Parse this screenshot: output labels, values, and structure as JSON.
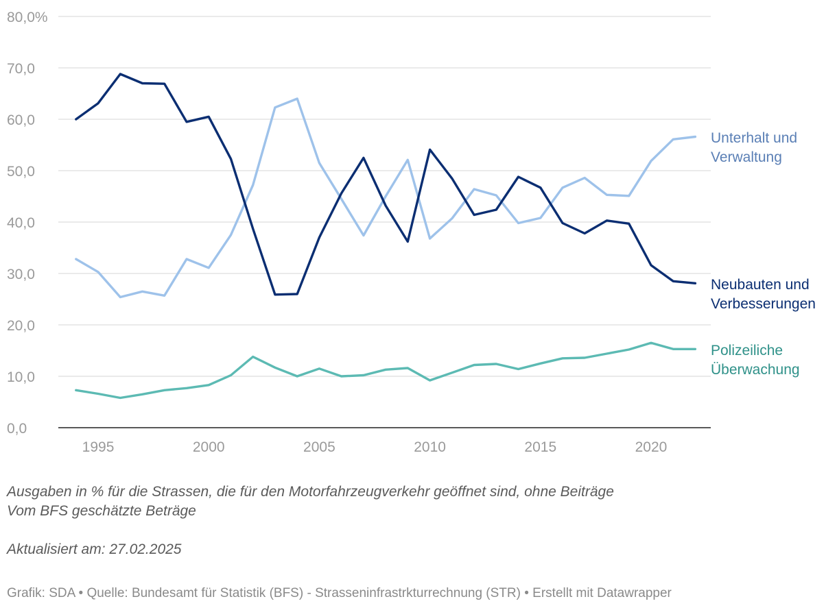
{
  "chart_data": {
    "type": "line",
    "title": "",
    "xlabel": "",
    "ylabel": "",
    "x": [
      1994,
      1995,
      1996,
      1997,
      1998,
      1999,
      2000,
      2001,
      2002,
      2003,
      2004,
      2005,
      2006,
      2007,
      2008,
      2009,
      2010,
      2011,
      2012,
      2013,
      2014,
      2015,
      2016,
      2017,
      2018,
      2019,
      2020,
      2021,
      2022
    ],
    "xlim": [
      1993.2,
      2022.7
    ],
    "ylim": [
      0,
      80
    ],
    "yticks": [
      "0,0",
      "10,0",
      "20,0",
      "30,0",
      "40,0",
      "50,0",
      "60,0",
      "70,0",
      "80,0%"
    ],
    "xticks": [
      "1995",
      "2000",
      "2005",
      "2010",
      "2015",
      "2020"
    ],
    "grid": true,
    "series": [
      {
        "name": "Unterhalt und Verwaltung",
        "label_lines": [
          "Unterhalt und",
          "Verwaltung"
        ],
        "color": "#9ec2ea",
        "label_color": "#5a7fb5",
        "values": [
          32.8,
          30.3,
          25.4,
          26.5,
          25.7,
          32.8,
          31.1,
          37.5,
          47.2,
          62.3,
          64.0,
          51.5,
          44.5,
          37.4,
          45.0,
          52.1,
          36.8,
          40.7,
          46.4,
          45.2,
          39.8,
          40.8,
          46.7,
          48.6,
          45.3,
          45.1,
          51.9,
          56.1,
          56.6
        ]
      },
      {
        "name": "Neubauten und Verbesserungen",
        "label_lines": [
          "Neubauten und",
          "Verbesserungen"
        ],
        "color": "#0b2e72",
        "label_color": "#0b2e72",
        "values": [
          60.0,
          63.1,
          68.8,
          67.0,
          66.9,
          59.5,
          60.5,
          52.3,
          38.7,
          25.9,
          26.0,
          37.0,
          45.6,
          52.5,
          43.2,
          36.2,
          54.1,
          48.5,
          41.4,
          42.4,
          48.8,
          46.7,
          39.8,
          37.8,
          40.3,
          39.7,
          31.6,
          28.5,
          28.1
        ]
      },
      {
        "name": "Polizeiliche Überwachung",
        "label_lines": [
          "Polizeiliche",
          "Überwachung"
        ],
        "color": "#5cbab3",
        "label_color": "#2f9189",
        "values": [
          7.3,
          6.6,
          5.8,
          6.5,
          7.3,
          7.7,
          8.3,
          10.2,
          13.8,
          11.7,
          10.0,
          11.5,
          10.0,
          10.2,
          11.3,
          11.6,
          9.2,
          10.7,
          12.2,
          12.4,
          11.4,
          12.5,
          13.5,
          13.6,
          14.4,
          15.2,
          16.5,
          15.3,
          15.3
        ]
      }
    ]
  },
  "notes": {
    "line1": "Ausgaben in % für die Strassen, die für den Motorfahrzeugverkehr geöffnet sind, ohne Beiträge",
    "line2": "Vom BFS geschätzte Beträge",
    "updated": "Aktualisiert am: 27.02.2025"
  },
  "footer": "Grafik: SDA • Quelle: Bundesamt für Statistik (BFS) - Strasseninfrastrkturrechnung (STR) • Erstellt mit Datawrapper",
  "colors": {
    "grid": "#dedede",
    "axis": "#222222",
    "tick_label": "#9a9a9a"
  }
}
